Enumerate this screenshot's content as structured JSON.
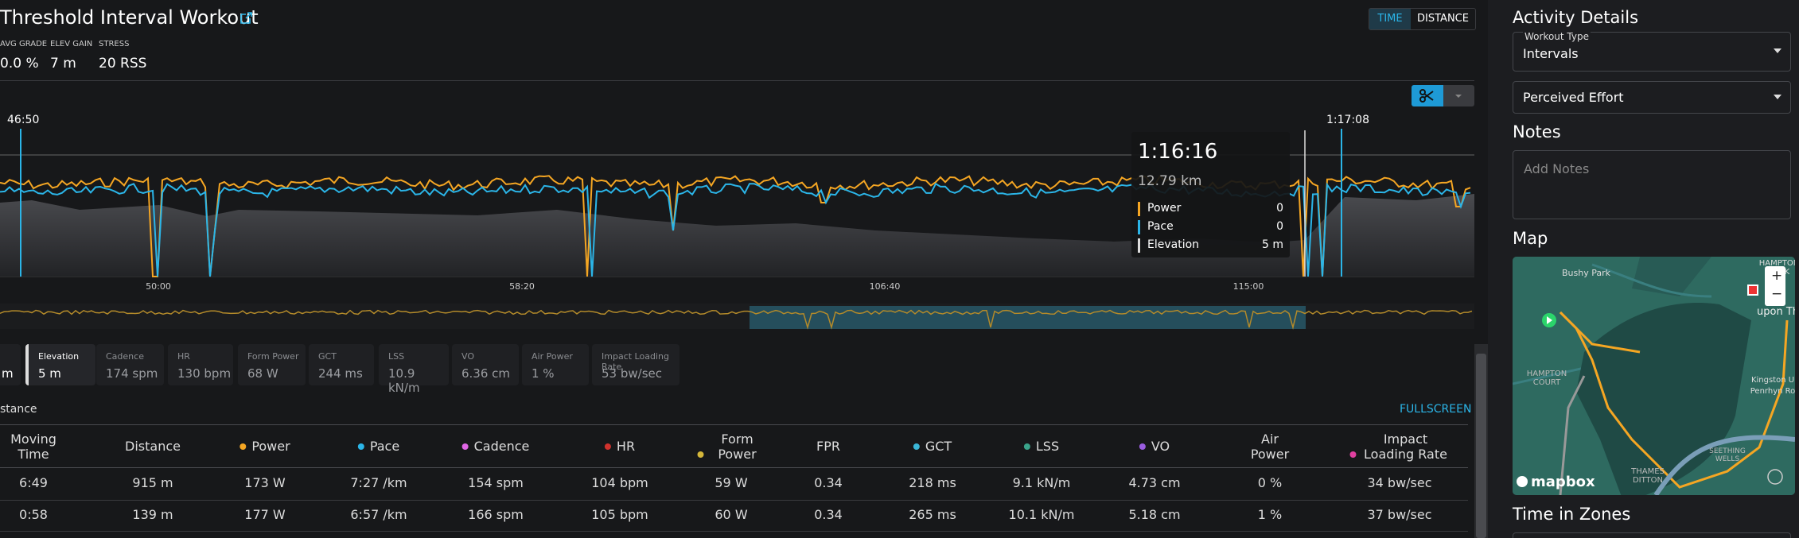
{
  "header": {
    "title": "Threshold Interval Workout",
    "stats": [
      {
        "label": "AVG GRADE",
        "value": "0.0 %"
      },
      {
        "label": "ELEV GAIN",
        "value": "7 m"
      },
      {
        "label": "STRESS",
        "value": "20 RSS"
      }
    ],
    "toggle": [
      "TIME",
      "DISTANCE"
    ]
  },
  "chart": {
    "range_start": "46:50",
    "range_end": "1:17:08",
    "x_ticks": [
      "50:00",
      "58:20",
      "106:40",
      "115:00"
    ],
    "tooltip": {
      "time": "1:16:16",
      "distance": "12.79 km",
      "rows": [
        {
          "label": "Power",
          "value": "0",
          "color": "#f5a623"
        },
        {
          "label": "Pace",
          "value": "0",
          "color": "#2bb5e8"
        },
        {
          "label": "Elevation",
          "value": "5 m",
          "color": "#dddddd"
        }
      ]
    }
  },
  "metrics": [
    {
      "value": "m"
    },
    {
      "label": "Elevation",
      "value": "5 m"
    },
    {
      "label": "Cadence",
      "value": "174 spm"
    },
    {
      "label": "HR",
      "value": "130 bpm"
    },
    {
      "label": "Form Power",
      "value": "68 W"
    },
    {
      "label": "GCT",
      "value": "244 ms"
    },
    {
      "label": "LSS",
      "value": "10.9 kN/m"
    },
    {
      "label": "VO",
      "value": "6.36 cm"
    },
    {
      "label": "Air Power",
      "value": "1 %"
    },
    {
      "label": "Impact Loading Rate",
      "value": "53 bw/sec"
    }
  ],
  "laps": {
    "title": "stance",
    "action": "FULLSCREEN",
    "columns": [
      {
        "label": "Moving Time"
      },
      {
        "label": "Distance"
      },
      {
        "label": "Power",
        "color": "#f5a623"
      },
      {
        "label": "Pace",
        "color": "#2bb5e8"
      },
      {
        "label": "Cadence",
        "color": "#e066e6"
      },
      {
        "label": "HR",
        "color": "#d0322d"
      },
      {
        "label": "Form Power",
        "color": "#d4b63a"
      },
      {
        "label": "FPR"
      },
      {
        "label": "GCT",
        "color": "#3bb7d8"
      },
      {
        "label": "LSS",
        "color": "#3aa38a"
      },
      {
        "label": "VO",
        "color": "#9a5de0"
      },
      {
        "label": "Air Power"
      },
      {
        "label": "Impact Loading Rate",
        "color": "#e040a0"
      }
    ],
    "rows": [
      [
        "6:49",
        "915 m",
        "173 W",
        "7:27 /km",
        "154 spm",
        "104 bpm",
        "59 W",
        "0.34",
        "218 ms",
        "9.1 kN/m",
        "4.73 cm",
        "0 %",
        "34 bw/sec"
      ],
      [
        "0:58",
        "139 m",
        "177 W",
        "6:57 /km",
        "166 spm",
        "105 bpm",
        "60 W",
        "0.34",
        "265 ms",
        "10.1 kN/m",
        "5.18 cm",
        "1 %",
        "37 bw/sec"
      ]
    ]
  },
  "sidebar": {
    "title": "Activity Details",
    "workout_type_label": "Workout Type",
    "workout_type": "Intervals",
    "perceived_effort": "Perceived Effort",
    "notes_title": "Notes",
    "notes_placeholder": "Add Notes",
    "map_title": "Map",
    "map_labels": [
      "Bushy Park",
      "HAMPTON WICK",
      "upon Thar",
      "HAMPTON COURT",
      "Kingston U",
      "Penrhyn Ro",
      "THAMES DITTON",
      "SEETHING WELLS"
    ],
    "map_brand": "mapbox",
    "zoom_in": "+",
    "zoom_out": "−",
    "zones_title": "Time in Zones"
  }
}
